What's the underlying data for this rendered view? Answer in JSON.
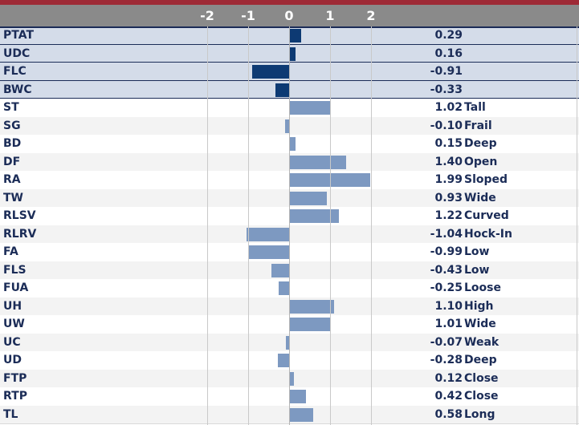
{
  "chart_data": {
    "type": "bar",
    "orientation": "horizontal",
    "xlim": [
      -2,
      2
    ],
    "x_ticks": [
      "-2",
      "-1",
      "0",
      "1",
      "2"
    ],
    "rows": [
      {
        "label": "PTAT",
        "value": 0.29,
        "value_text": "0.29",
        "desc": "",
        "group": "index"
      },
      {
        "label": "UDC",
        "value": 0.16,
        "value_text": "0.16",
        "desc": "",
        "group": "index"
      },
      {
        "label": "FLC",
        "value": -0.91,
        "value_text": "-0.91",
        "desc": "",
        "group": "index"
      },
      {
        "label": "BWC",
        "value": -0.33,
        "value_text": "-0.33",
        "desc": "",
        "group": "index"
      },
      {
        "label": "ST",
        "value": 1.02,
        "value_text": "1.02",
        "desc": "Tall",
        "group": "trait"
      },
      {
        "label": "SG",
        "value": -0.1,
        "value_text": "-0.10",
        "desc": "Frail",
        "group": "trait"
      },
      {
        "label": "BD",
        "value": 0.15,
        "value_text": "0.15",
        "desc": "Deep",
        "group": "trait"
      },
      {
        "label": "DF",
        "value": 1.4,
        "value_text": "1.40",
        "desc": "Open",
        "group": "trait"
      },
      {
        "label": "RA",
        "value": 1.99,
        "value_text": "1.99",
        "desc": "Sloped",
        "group": "trait"
      },
      {
        "label": "TW",
        "value": 0.93,
        "value_text": "0.93",
        "desc": "Wide",
        "group": "trait"
      },
      {
        "label": "RLSV",
        "value": 1.22,
        "value_text": "1.22",
        "desc": "Curved",
        "group": "trait"
      },
      {
        "label": "RLRV",
        "value": -1.04,
        "value_text": "-1.04",
        "desc": "Hock-In",
        "group": "trait"
      },
      {
        "label": "FA",
        "value": -0.99,
        "value_text": "-0.99",
        "desc": "Low",
        "group": "trait"
      },
      {
        "label": "FLS",
        "value": -0.43,
        "value_text": "-0.43",
        "desc": "Low",
        "group": "trait"
      },
      {
        "label": "FUA",
        "value": -0.25,
        "value_text": "-0.25",
        "desc": "Loose",
        "group": "trait"
      },
      {
        "label": "UH",
        "value": 1.1,
        "value_text": "1.10",
        "desc": "High",
        "group": "trait"
      },
      {
        "label": "UW",
        "value": 1.01,
        "value_text": "1.01",
        "desc": "Wide",
        "group": "trait"
      },
      {
        "label": "UC",
        "value": -0.07,
        "value_text": "-0.07",
        "desc": "Weak",
        "group": "trait"
      },
      {
        "label": "UD",
        "value": -0.28,
        "value_text": "-0.28",
        "desc": "Deep",
        "group": "trait"
      },
      {
        "label": "FTP",
        "value": 0.12,
        "value_text": "0.12",
        "desc": "Close",
        "group": "trait"
      },
      {
        "label": "RTP",
        "value": 0.42,
        "value_text": "0.42",
        "desc": "Close",
        "group": "trait"
      },
      {
        "label": "TL",
        "value": 0.58,
        "value_text": "0.58",
        "desc": "Long",
        "group": "trait"
      }
    ],
    "grid": true,
    "colors": {
      "index_bar": "#0d3a73",
      "trait_bar": "#7d99c1",
      "index_row_bg": "#d4dce9",
      "header_bg": "#8a8a8a",
      "top_accent": "#9e2a36",
      "text": "#1b2c57"
    }
  }
}
